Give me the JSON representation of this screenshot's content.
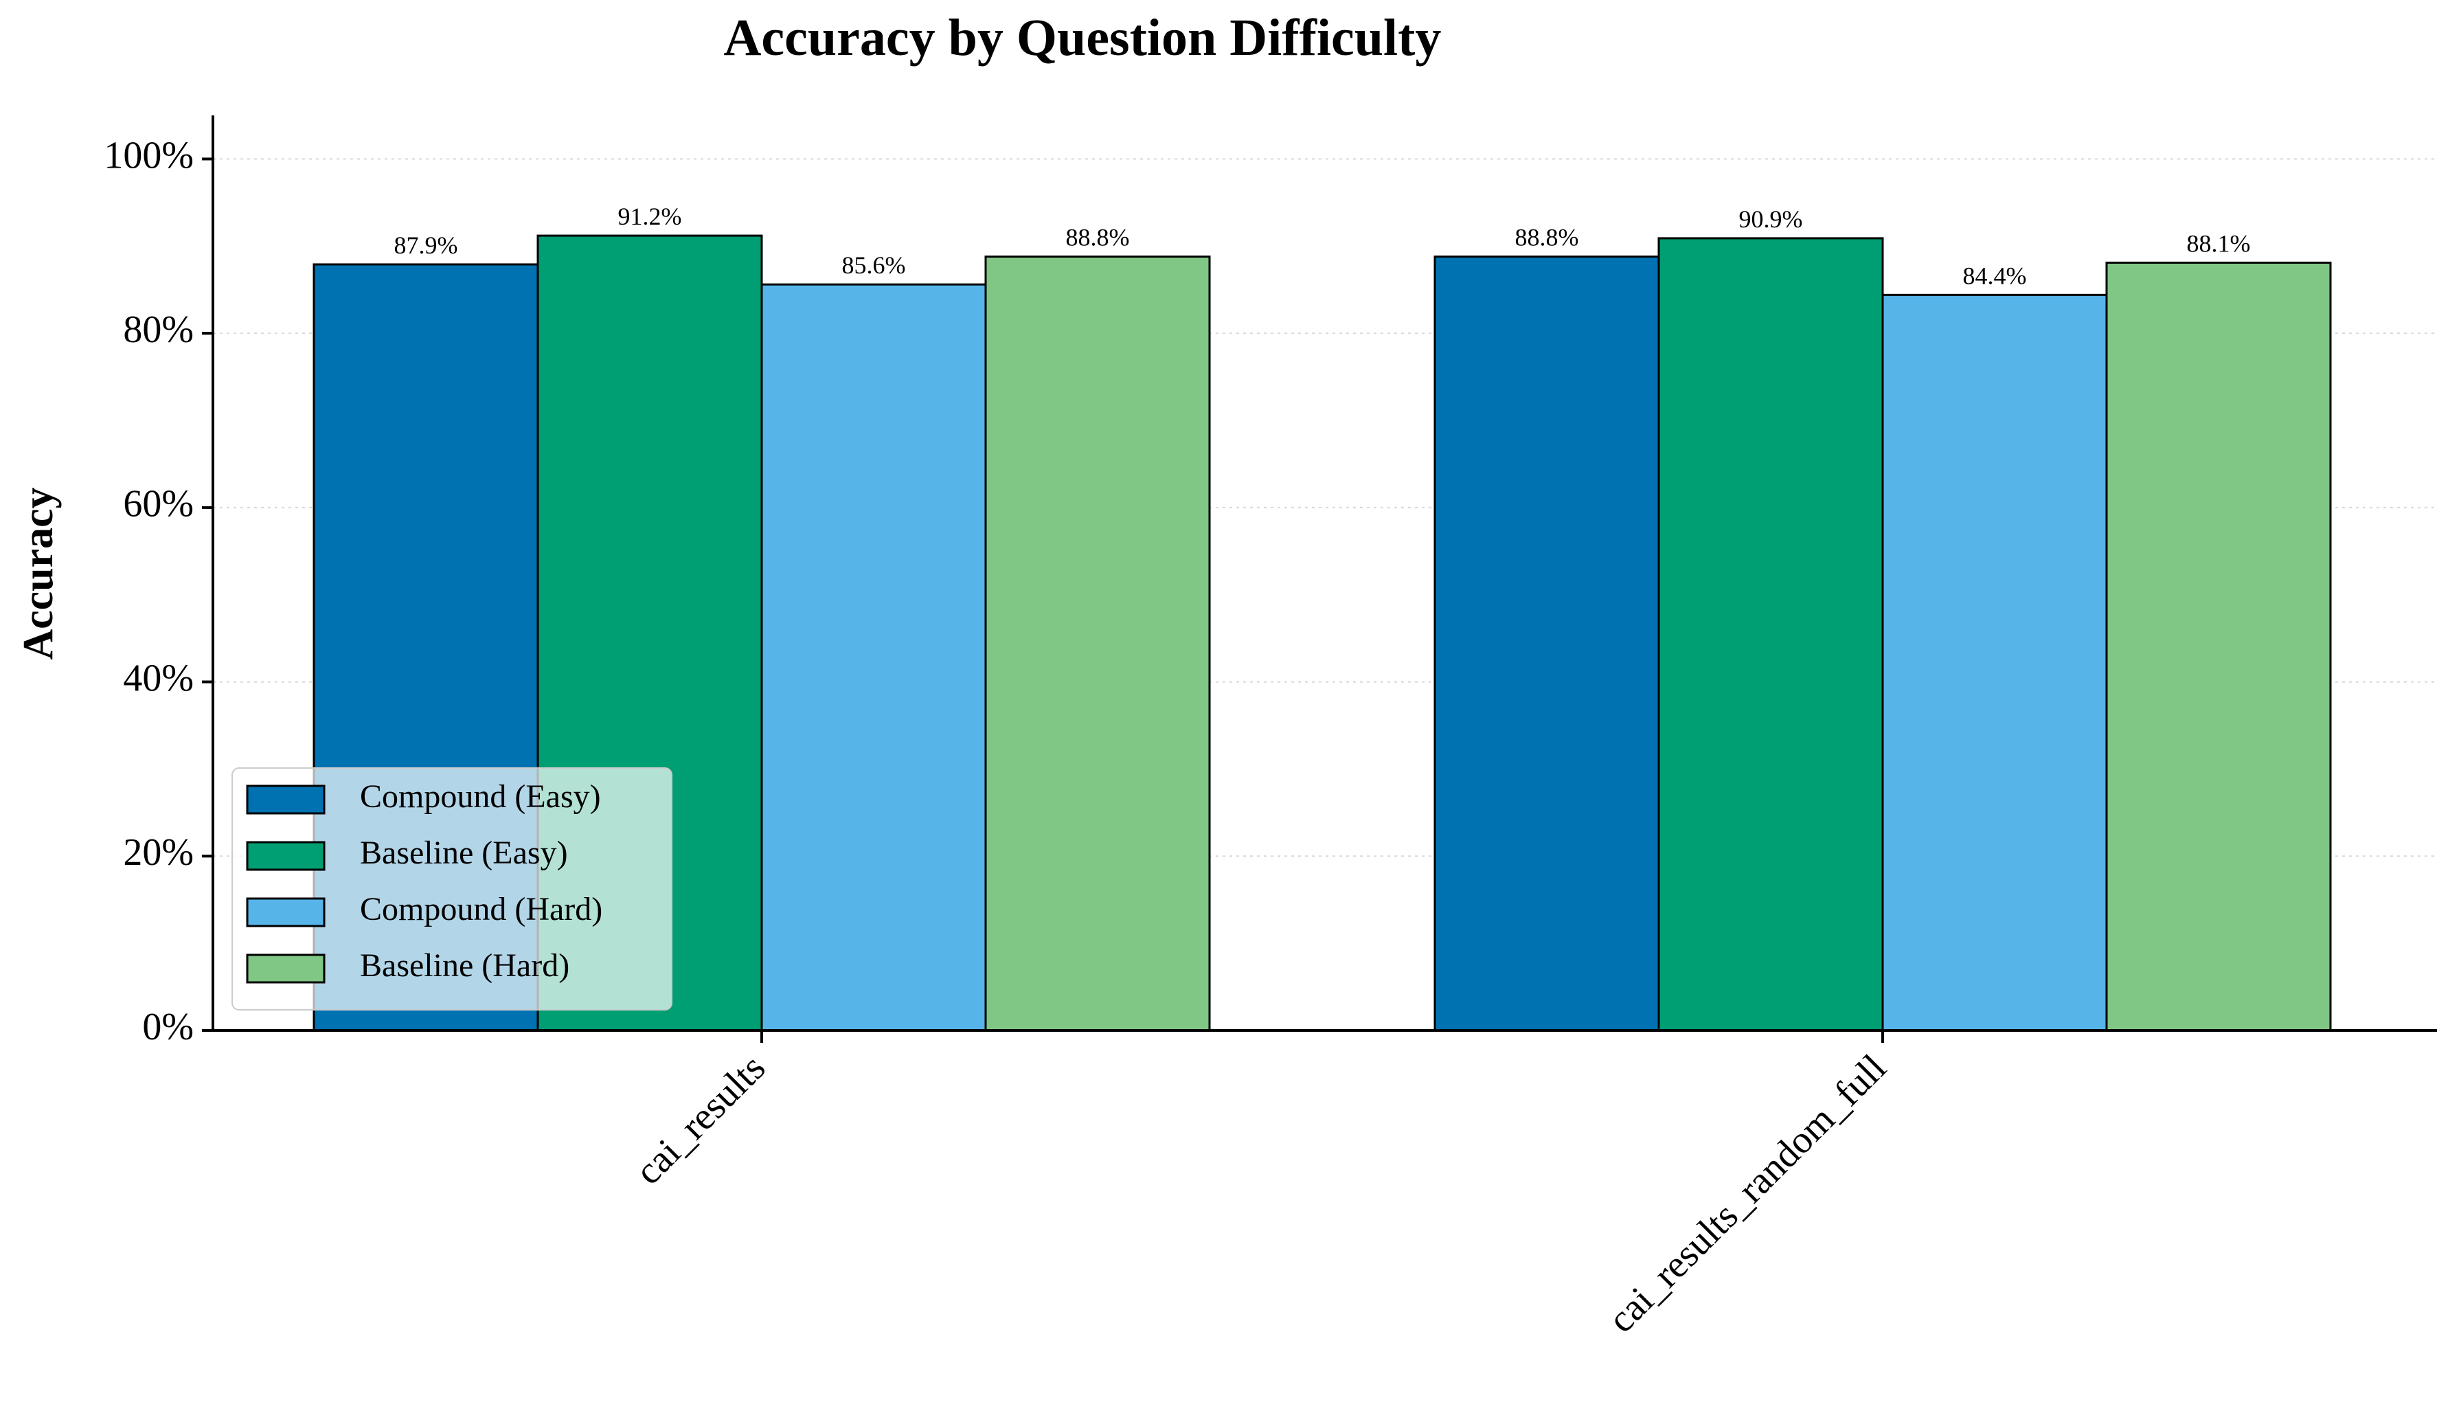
{
  "chart_data": {
    "type": "bar",
    "title": "Accuracy by Question Difficulty",
    "xlabel": "",
    "ylabel": "Accuracy",
    "categories": [
      "cai_results",
      "cai_results_random_full"
    ],
    "series": [
      {
        "name": "Compound (Easy)",
        "values": [
          87.9,
          88.8
        ],
        "color": "#0072B2"
      },
      {
        "name": "Baseline (Easy)",
        "values": [
          91.2,
          90.9
        ],
        "color": "#009E73"
      },
      {
        "name": "Compound (Hard)",
        "values": [
          85.6,
          84.4
        ],
        "color": "#56B4E9"
      },
      {
        "name": "Baseline (Hard)",
        "values": [
          88.8,
          88.1
        ],
        "color": "#80C684"
      }
    ],
    "data_labels": [
      [
        "87.9%",
        "88.8%"
      ],
      [
        "91.2%",
        "90.9%"
      ],
      [
        "85.6%",
        "84.4%"
      ],
      [
        "88.8%",
        "88.1%"
      ]
    ],
    "ylim": [
      0,
      105
    ],
    "yticks": [
      0,
      20,
      40,
      60,
      80,
      100
    ],
    "ytick_labels": [
      "0%",
      "20%",
      "40%",
      "60%",
      "80%",
      "100%"
    ],
    "grid": "horizontal dotted",
    "legend_position": "lower-left"
  }
}
